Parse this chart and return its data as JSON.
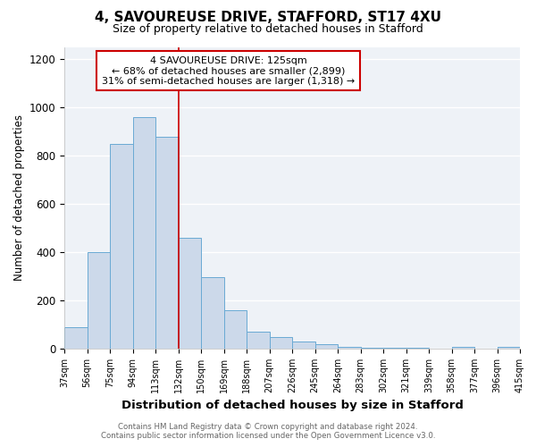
{
  "title_line1": "4, SAVOUREUSE DRIVE, STAFFORD, ST17 4XU",
  "title_line2": "Size of property relative to detached houses in Stafford",
  "xlabel": "Distribution of detached houses by size in Stafford",
  "ylabel": "Number of detached properties",
  "bin_labels": [
    "37sqm",
    "56sqm",
    "75sqm",
    "94sqm",
    "113sqm",
    "132sqm",
    "150sqm",
    "169sqm",
    "188sqm",
    "207sqm",
    "226sqm",
    "245sqm",
    "264sqm",
    "283sqm",
    "302sqm",
    "321sqm",
    "339sqm",
    "358sqm",
    "377sqm",
    "396sqm",
    "415sqm"
  ],
  "bar_values": [
    90,
    400,
    848,
    960,
    878,
    460,
    295,
    160,
    70,
    50,
    30,
    18,
    8,
    4,
    3,
    2,
    0,
    8,
    0,
    8
  ],
  "bar_color": "#ccd9ea",
  "bar_edge_color": "#6aaad4",
  "property_label": "4 SAVOUREUSE DRIVE: 125sqm",
  "annotation_line1": "← 68% of detached houses are smaller (2,899)",
  "annotation_line2": "31% of semi-detached houses are larger (1,318) →",
  "red_line_color": "#cc0000",
  "annotation_box_edge_color": "#cc0000",
  "footer_line1": "Contains HM Land Registry data © Crown copyright and database right 2024.",
  "footer_line2": "Contains public sector information licensed under the Open Government Licence v3.0.",
  "ylim": [
    0,
    1250
  ],
  "yticks": [
    0,
    200,
    400,
    600,
    800,
    1000,
    1200
  ],
  "background_color": "#eef2f7"
}
